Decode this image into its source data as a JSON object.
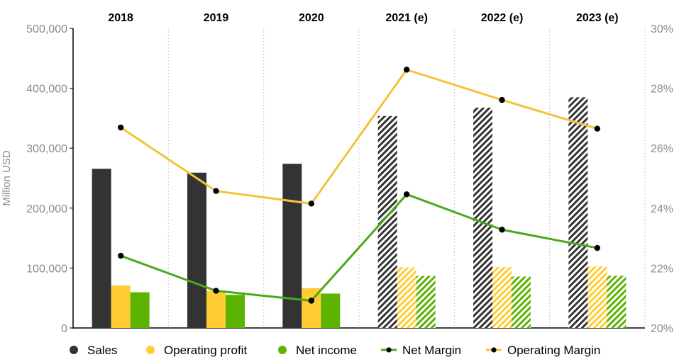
{
  "chart_data": {
    "type": "bar",
    "categories": [
      "2018",
      "2019",
      "2020",
      "2021 (e)",
      "2022 (e)",
      "2023 (e)"
    ],
    "estimated_from_index": 3,
    "ylabel": "Million USD",
    "ylim": [
      0,
      500000
    ],
    "y_ticks": [
      0,
      100000,
      200000,
      300000,
      400000,
      500000
    ],
    "y_tick_labels": [
      "0",
      "100,000",
      "200,000",
      "300,000",
      "400,000",
      "500,000"
    ],
    "y2lim": [
      20,
      30
    ],
    "y2_ticks": [
      20,
      22,
      24,
      26,
      28,
      30
    ],
    "y2_tick_labels": [
      "20%",
      "22%",
      "24%",
      "26%",
      "28%",
      "30%"
    ],
    "series": [
      {
        "name": "Sales",
        "kind": "bar",
        "color": "#333333",
        "values": [
          265595,
          259151,
          273970,
          353700,
          367600,
          385000
        ]
      },
      {
        "name": "Operating profit",
        "kind": "bar",
        "color": "#ffcc33",
        "values": [
          70900,
          62000,
          66300,
          101000,
          101500,
          102800
        ]
      },
      {
        "name": "Net income",
        "kind": "bar",
        "color": "#5cb300",
        "values": [
          59531,
          55256,
          57411,
          86900,
          85700,
          87300
        ]
      },
      {
        "name": "Net Margin",
        "kind": "line",
        "axis": "right",
        "color": "#4aa81c",
        "values": [
          22.41,
          21.24,
          20.91,
          24.46,
          23.28,
          22.67
        ]
      },
      {
        "name": "Operating Margin",
        "kind": "line",
        "axis": "right",
        "color": "#f5c23c",
        "values": [
          26.69,
          24.57,
          24.15,
          28.62,
          27.61,
          26.65
        ]
      }
    ],
    "gridlines": "vertical-dotted",
    "legend_position": "bottom"
  }
}
